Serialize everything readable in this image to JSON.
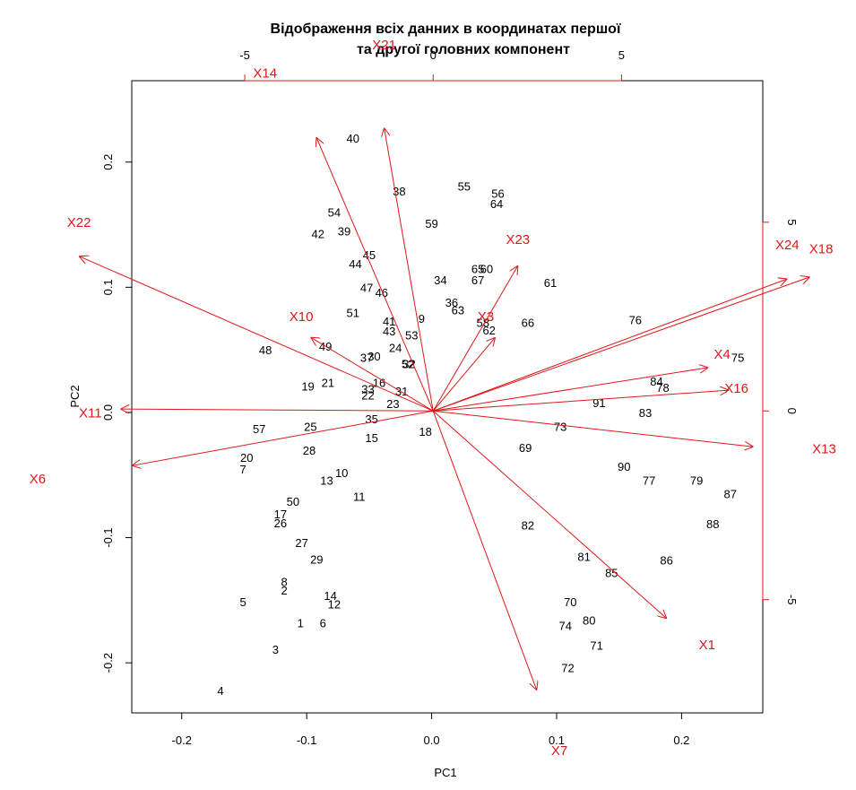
{
  "chart_data": {
    "type": "biplot",
    "title_lines": [
      "Відображення всіх данних в координатах першої",
      "та другої головних компонент"
    ],
    "xlabel": "PC1",
    "ylabel": "PC2",
    "xlim": [
      -0.24,
      0.265
    ],
    "ylim": [
      -0.24,
      0.265
    ],
    "x_ticks": [
      "-0.2",
      "-0.1",
      "0.0",
      "0.1",
      "0.2"
    ],
    "y_ticks": [
      "-0.2",
      "-0.1",
      "0.0",
      "0.1",
      "0.2"
    ],
    "x_tick_values": [
      -0.2,
      -0.1,
      0.0,
      0.1,
      0.2
    ],
    "y_tick_values": [
      -0.2,
      -0.1,
      0.0,
      0.1,
      0.2
    ],
    "var_lim": [
      -8.0,
      8.75
    ],
    "top_ticks": [
      "-5",
      "0",
      "5"
    ],
    "right_ticks": [
      "-5",
      "0",
      "5"
    ],
    "top_tick_values": [
      -5,
      0,
      5
    ],
    "right_tick_values": [
      -5,
      0,
      5
    ],
    "observations": [
      {
        "label": "1",
        "x": -0.105,
        "y": -0.168
      },
      {
        "label": "2",
        "x": -0.118,
        "y": -0.142
      },
      {
        "label": "3",
        "x": -0.125,
        "y": -0.189
      },
      {
        "label": "4",
        "x": -0.169,
        "y": -0.222
      },
      {
        "label": "5",
        "x": -0.151,
        "y": -0.151
      },
      {
        "label": "6",
        "x": -0.087,
        "y": -0.168
      },
      {
        "label": "7",
        "x": -0.151,
        "y": -0.045
      },
      {
        "label": "8",
        "x": -0.118,
        "y": -0.135
      },
      {
        "label": "9",
        "x": -0.008,
        "y": 0.075
      },
      {
        "label": "10",
        "x": -0.072,
        "y": -0.048
      },
      {
        "label": "11",
        "x": -0.058,
        "y": -0.067
      },
      {
        "label": "12",
        "x": -0.078,
        "y": -0.153
      },
      {
        "label": "13",
        "x": -0.084,
        "y": -0.054
      },
      {
        "label": "14",
        "x": -0.081,
        "y": -0.146
      },
      {
        "label": "15",
        "x": -0.048,
        "y": -0.02
      },
      {
        "label": "16",
        "x": -0.042,
        "y": 0.024
      },
      {
        "label": "17",
        "x": -0.121,
        "y": -0.081
      },
      {
        "label": "18",
        "x": -0.005,
        "y": -0.015
      },
      {
        "label": "19",
        "x": -0.099,
        "y": 0.021
      },
      {
        "label": "20",
        "x": -0.148,
        "y": -0.036
      },
      {
        "label": "21",
        "x": -0.083,
        "y": 0.024
      },
      {
        "label": "22",
        "x": -0.051,
        "y": 0.014
      },
      {
        "label": "23",
        "x": -0.031,
        "y": 0.007
      },
      {
        "label": "24",
        "x": -0.029,
        "y": 0.052
      },
      {
        "label": "25",
        "x": -0.097,
        "y": -0.011
      },
      {
        "label": "26",
        "x": -0.121,
        "y": -0.088
      },
      {
        "label": "27",
        "x": -0.104,
        "y": -0.104
      },
      {
        "label": "28",
        "x": -0.098,
        "y": -0.03
      },
      {
        "label": "29",
        "x": -0.092,
        "y": -0.117
      },
      {
        "label": "30",
        "x": -0.046,
        "y": 0.045
      },
      {
        "label": "31",
        "x": -0.024,
        "y": 0.017
      },
      {
        "label": "32",
        "x": -0.018,
        "y": 0.039
      },
      {
        "label": "33",
        "x": -0.051,
        "y": 0.019
      },
      {
        "label": "34",
        "x": 0.007,
        "y": 0.106
      },
      {
        "label": "35",
        "x": -0.048,
        "y": -0.005
      },
      {
        "label": "36",
        "x": 0.016,
        "y": 0.088
      },
      {
        "label": "37",
        "x": -0.052,
        "y": 0.044
      },
      {
        "label": "38",
        "x": -0.026,
        "y": 0.177
      },
      {
        "label": "39",
        "x": -0.07,
        "y": 0.145
      },
      {
        "label": "40",
        "x": -0.063,
        "y": 0.219
      },
      {
        "label": "41",
        "x": -0.034,
        "y": 0.073
      },
      {
        "label": "42",
        "x": -0.091,
        "y": 0.143
      },
      {
        "label": "43",
        "x": -0.034,
        "y": 0.065
      },
      {
        "label": "44",
        "x": -0.061,
        "y": 0.119
      },
      {
        "label": "45",
        "x": -0.05,
        "y": 0.126
      },
      {
        "label": "46",
        "x": -0.04,
        "y": 0.096
      },
      {
        "label": "47",
        "x": -0.052,
        "y": 0.1
      },
      {
        "label": "48",
        "x": -0.133,
        "y": 0.05
      },
      {
        "label": "49",
        "x": -0.085,
        "y": 0.053
      },
      {
        "label": "50",
        "x": -0.111,
        "y": -0.071
      },
      {
        "label": "51",
        "x": -0.063,
        "y": 0.08
      },
      {
        "label": "52",
        "x": -0.019,
        "y": 0.039
      },
      {
        "label": "53",
        "x": -0.016,
        "y": 0.062
      },
      {
        "label": "54",
        "x": -0.078,
        "y": 0.16
      },
      {
        "label": "55",
        "x": 0.026,
        "y": 0.181
      },
      {
        "label": "56",
        "x": 0.053,
        "y": 0.175
      },
      {
        "label": "57",
        "x": -0.138,
        "y": -0.013
      },
      {
        "label": "58",
        "x": 0.041,
        "y": 0.072
      },
      {
        "label": "59",
        "x": 0.0,
        "y": 0.151
      },
      {
        "label": "60",
        "x": 0.044,
        "y": 0.115
      },
      {
        "label": "61",
        "x": 0.095,
        "y": 0.104
      },
      {
        "label": "62",
        "x": 0.046,
        "y": 0.066
      },
      {
        "label": "63",
        "x": 0.021,
        "y": 0.082
      },
      {
        "label": "64",
        "x": 0.052,
        "y": 0.167
      },
      {
        "label": "65",
        "x": 0.037,
        "y": 0.115
      },
      {
        "label": "66",
        "x": 0.077,
        "y": 0.072
      },
      {
        "label": "67",
        "x": 0.037,
        "y": 0.106
      },
      {
        "label": "69",
        "x": 0.075,
        "y": -0.028
      },
      {
        "label": "70",
        "x": 0.111,
        "y": -0.151
      },
      {
        "label": "71",
        "x": 0.132,
        "y": -0.186
      },
      {
        "label": "72",
        "x": 0.109,
        "y": -0.204
      },
      {
        "label": "73",
        "x": 0.103,
        "y": -0.011
      },
      {
        "label": "74",
        "x": 0.107,
        "y": -0.17
      },
      {
        "label": "75",
        "x": 0.245,
        "y": 0.044
      },
      {
        "label": "76",
        "x": 0.163,
        "y": 0.074
      },
      {
        "label": "77",
        "x": 0.174,
        "y": -0.054
      },
      {
        "label": "78",
        "x": 0.185,
        "y": 0.02
      },
      {
        "label": "79",
        "x": 0.212,
        "y": -0.054
      },
      {
        "label": "80",
        "x": 0.126,
        "y": -0.166
      },
      {
        "label": "81",
        "x": 0.122,
        "y": -0.115
      },
      {
        "label": "82",
        "x": 0.077,
        "y": -0.09
      },
      {
        "label": "83",
        "x": 0.171,
        "y": 0.0
      },
      {
        "label": "84",
        "x": 0.18,
        "y": 0.025
      },
      {
        "label": "85",
        "x": 0.144,
        "y": -0.128
      },
      {
        "label": "86",
        "x": 0.188,
        "y": -0.118
      },
      {
        "label": "87",
        "x": 0.239,
        "y": -0.065
      },
      {
        "label": "88",
        "x": 0.225,
        "y": -0.089
      },
      {
        "label": "90",
        "x": 0.154,
        "y": -0.043
      },
      {
        "label": "91",
        "x": 0.134,
        "y": 0.008
      }
    ],
    "variables": [
      {
        "label": "X1",
        "x": 6.2,
        "y": -5.5,
        "lx": 7.27,
        "ly": -6.2
      },
      {
        "label": "X3",
        "x": 1.65,
        "y": 1.95,
        "lx": 1.4,
        "ly": 2.5
      },
      {
        "label": "X4",
        "x": 7.3,
        "y": 1.15,
        "lx": 7.67,
        "ly": 1.5
      },
      {
        "label": "X6",
        "x": -8.0,
        "y": -1.45,
        "lx": -10.5,
        "ly": -1.8
      },
      {
        "label": "X7",
        "x": 2.75,
        "y": -7.4,
        "lx": 3.35,
        "ly": -9.0
      },
      {
        "label": "X10",
        "x": -3.25,
        "y": 1.95,
        "lx": -3.5,
        "ly": 2.5
      },
      {
        "label": "X11",
        "x": -8.3,
        "y": 0.05,
        "lx": -9.1,
        "ly": -0.05
      },
      {
        "label": "X13",
        "x": 8.5,
        "y": -0.95,
        "lx": 10.38,
        "ly": -1.0
      },
      {
        "label": "X14",
        "x": -3.1,
        "y": 7.25,
        "lx": -4.46,
        "ly": 8.95
      },
      {
        "label": "X16",
        "x": 7.85,
        "y": 0.55,
        "lx": 8.05,
        "ly": 0.6
      },
      {
        "label": "X18",
        "x": 10.0,
        "y": 3.55,
        "lx": 10.3,
        "ly": 4.3
      },
      {
        "label": "X21",
        "x": -1.3,
        "y": 7.5,
        "lx": -1.3,
        "ly": 9.7
      },
      {
        "label": "X22",
        "x": -9.4,
        "y": 4.1,
        "lx": -9.4,
        "ly": 5.0
      },
      {
        "label": "X23",
        "x": 2.25,
        "y": 3.85,
        "lx": 2.25,
        "ly": 4.55
      },
      {
        "label": "X24",
        "x": 9.4,
        "y": 3.5,
        "lx": 9.4,
        "ly": 4.4
      }
    ]
  }
}
